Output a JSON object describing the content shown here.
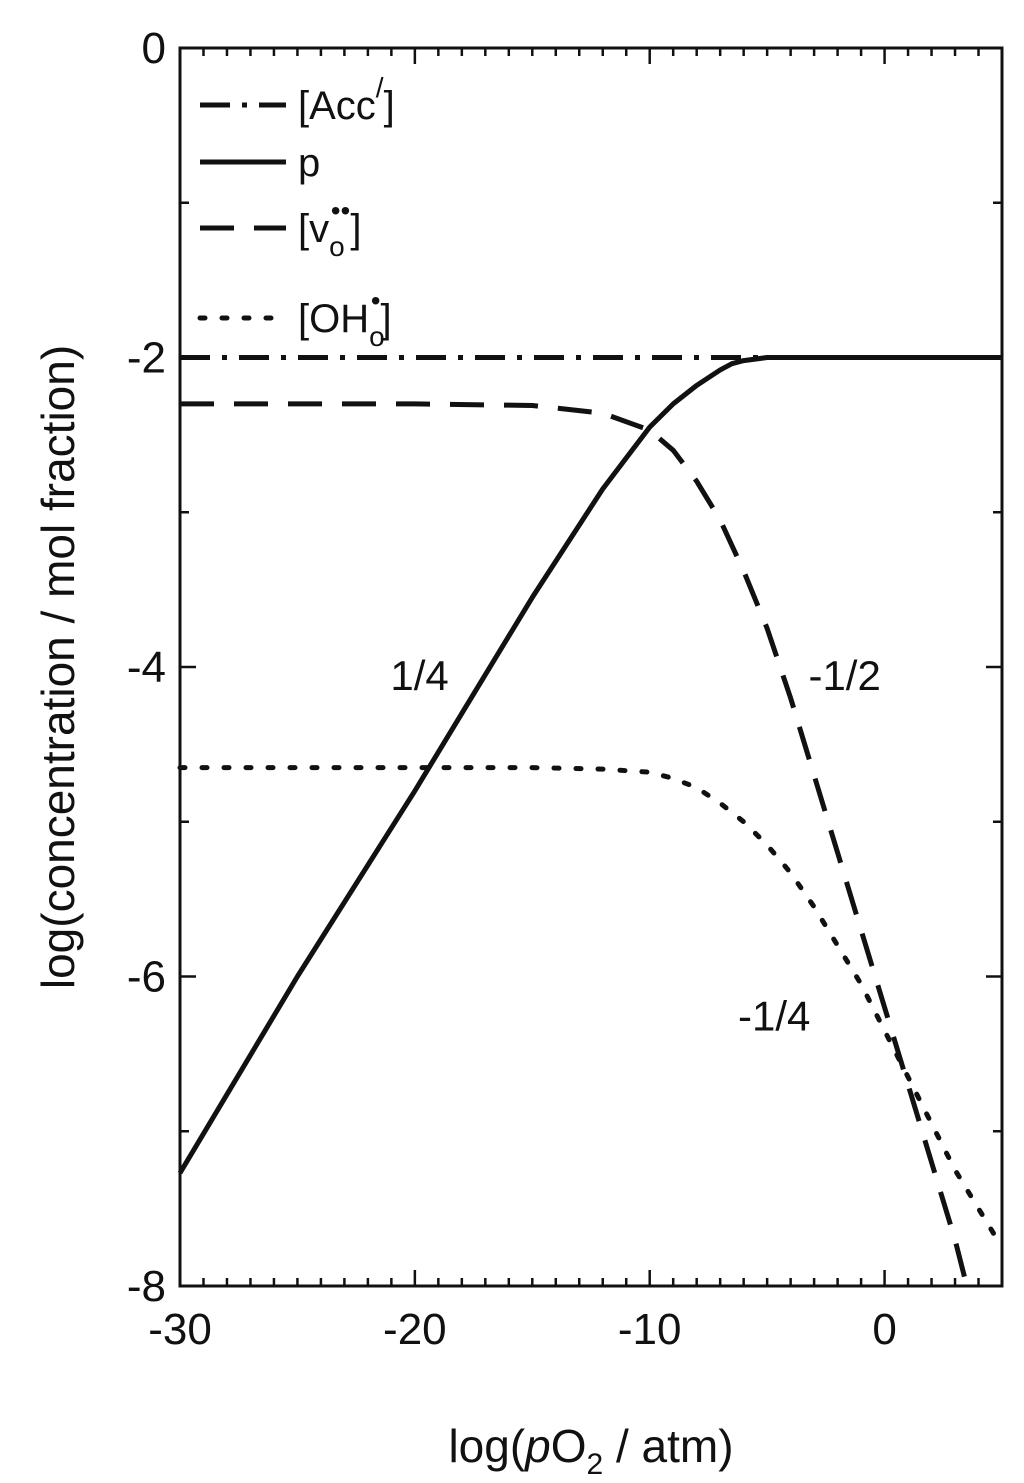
{
  "chart_data": {
    "type": "line",
    "xlabel_prefix": "log(",
    "xlabel_italic": "p",
    "xlabel_mid": "O",
    "xlabel_sub": "2",
    "xlabel_suffix": " / atm)",
    "ylabel": "log(concentration / mol fraction)",
    "xlim": [
      -30,
      5
    ],
    "ylim": [
      -8,
      0
    ],
    "x_ticks": [
      -30,
      -20,
      -10,
      0
    ],
    "y_ticks": [
      0,
      -2,
      -4,
      -6,
      -8
    ],
    "grid": false,
    "legend_position": "top-left",
    "series": [
      {
        "key": "acc",
        "style": "dash-dot",
        "legend": {
          "open": "[Acc",
          "sup": "/",
          "close": "]"
        },
        "x": [
          -30,
          -20,
          -10,
          -5,
          0,
          5
        ],
        "y": [
          -2.0,
          -2.0,
          -2.0,
          -2.0,
          -2.0,
          -2.0
        ]
      },
      {
        "key": "p",
        "style": "solid",
        "legend": {
          "open": "p",
          "sup": "",
          "close": ""
        },
        "x": [
          -30,
          -25,
          -20,
          -18,
          -15,
          -12,
          -10,
          -9,
          -8,
          -7,
          -6.5,
          -6,
          -5,
          -3,
          0,
          5
        ],
        "y": [
          -7.27,
          -6.0,
          -4.8,
          -4.3,
          -3.55,
          -2.85,
          -2.45,
          -2.3,
          -2.18,
          -2.08,
          -2.04,
          -2.02,
          -2.0,
          -2.0,
          -2.0,
          -2.0
        ]
      },
      {
        "key": "vo",
        "style": "dash",
        "legend": {
          "open": "[v",
          "sub": "o",
          "sup": "••",
          "close": "]"
        },
        "x": [
          -30,
          -20,
          -15,
          -12,
          -10,
          -9,
          -8,
          -7,
          -6,
          -5,
          -4,
          -3,
          -2,
          -1,
          0,
          1,
          2,
          3,
          3.5
        ],
        "y": [
          -2.3,
          -2.3,
          -2.31,
          -2.36,
          -2.47,
          -2.6,
          -2.8,
          -3.05,
          -3.38,
          -3.75,
          -4.2,
          -4.7,
          -5.2,
          -5.7,
          -6.2,
          -6.7,
          -7.2,
          -7.7,
          -8.0
        ]
      },
      {
        "key": "oh",
        "style": "dot",
        "legend": {
          "open": "[OH",
          "sub": "o",
          "sup": "•",
          "close": "]"
        },
        "x": [
          -30,
          -20,
          -15,
          -12,
          -10,
          -9,
          -8,
          -7,
          -6,
          -5,
          -4,
          -3,
          -2,
          -1,
          0,
          1,
          2,
          3,
          4,
          5
        ],
        "y": [
          -4.65,
          -4.65,
          -4.65,
          -4.66,
          -4.68,
          -4.72,
          -4.78,
          -4.88,
          -5.0,
          -5.15,
          -5.33,
          -5.55,
          -5.8,
          -6.05,
          -6.35,
          -6.65,
          -6.95,
          -7.25,
          -7.5,
          -7.75
        ]
      }
    ],
    "annotations": [
      {
        "text": "1/4",
        "x": -19.8,
        "y": -4.15
      },
      {
        "text": "-1/2",
        "x": -1.7,
        "y": -4.15
      },
      {
        "text": "-1/4",
        "x": -4.7,
        "y": -6.35
      }
    ]
  }
}
